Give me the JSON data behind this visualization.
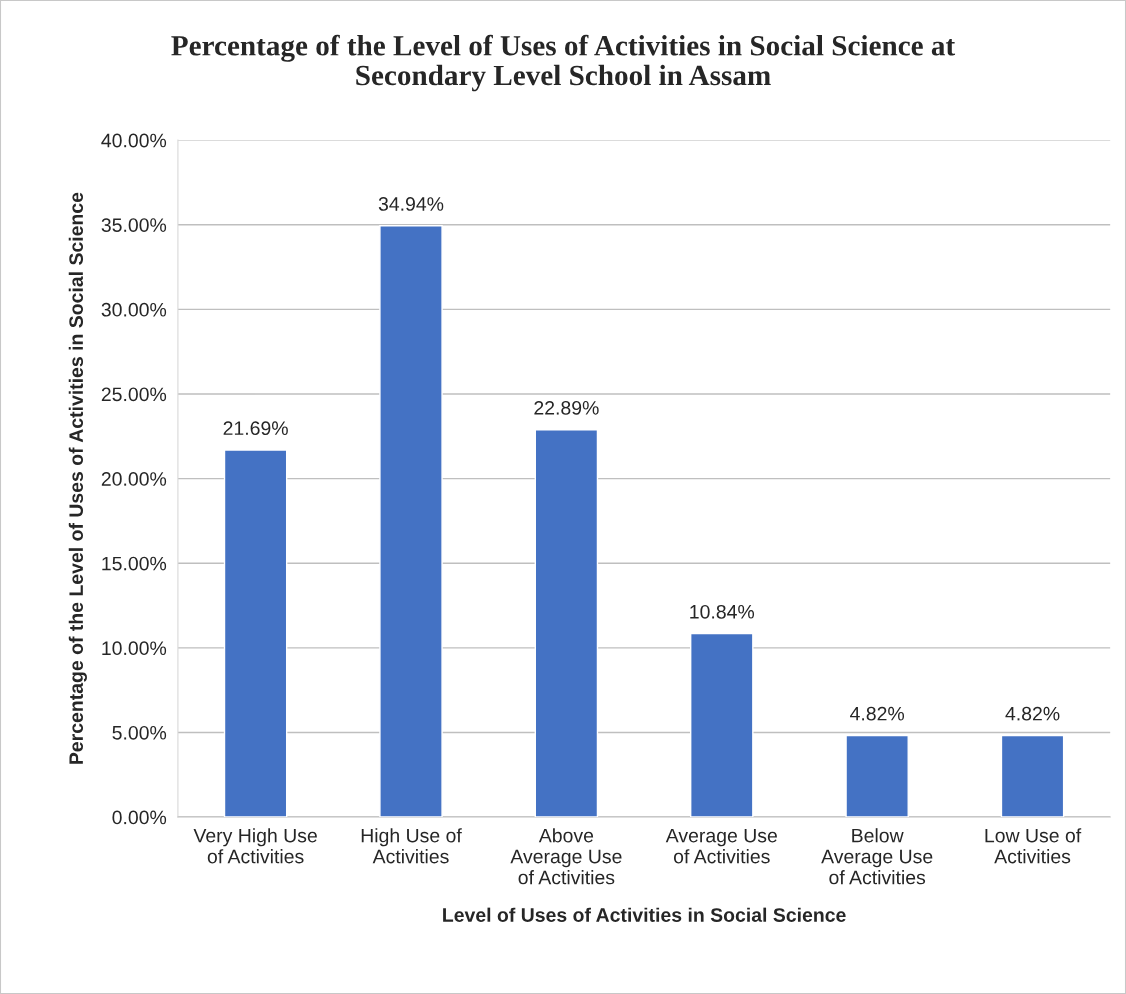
{
  "chart_data": {
    "type": "bar",
    "title": "Percentage of the Level of Uses of Activities in Social Science at\nSecondary Level School in Assam",
    "xlabel": "Level of Uses of Activities in Social Science",
    "ylabel": "Percentage of the Level of Uses of Activities in Social Science",
    "categories": [
      "Very High Use\nof Activities",
      "High Use of\nActivities",
      "Above\nAverage Use\nof Activities",
      "Average Use\nof Activities",
      "Below\nAverage Use\nof Activities",
      "Low Use of\nActivities"
    ],
    "values": [
      21.69,
      34.94,
      22.89,
      10.84,
      4.82,
      4.82
    ],
    "value_labels": [
      "21.69%",
      "34.94%",
      "22.89%",
      "10.84%",
      "4.82%",
      "4.82%"
    ],
    "color": "#4472c4",
    "ylim": [
      0,
      40
    ],
    "yticks": [
      {
        "value": 0,
        "label": "0.00%"
      },
      {
        "value": 5,
        "label": "5.00%"
      },
      {
        "value": 10,
        "label": "10.00%"
      },
      {
        "value": 15,
        "label": "15.00%"
      },
      {
        "value": 20,
        "label": "20.00%"
      },
      {
        "value": 25,
        "label": "25.00%"
      },
      {
        "value": 30,
        "label": "30.00%"
      },
      {
        "value": 35,
        "label": "35.00%"
      },
      {
        "value": 40,
        "label": "40.00%"
      }
    ],
    "grid": "y",
    "legend": false
  }
}
